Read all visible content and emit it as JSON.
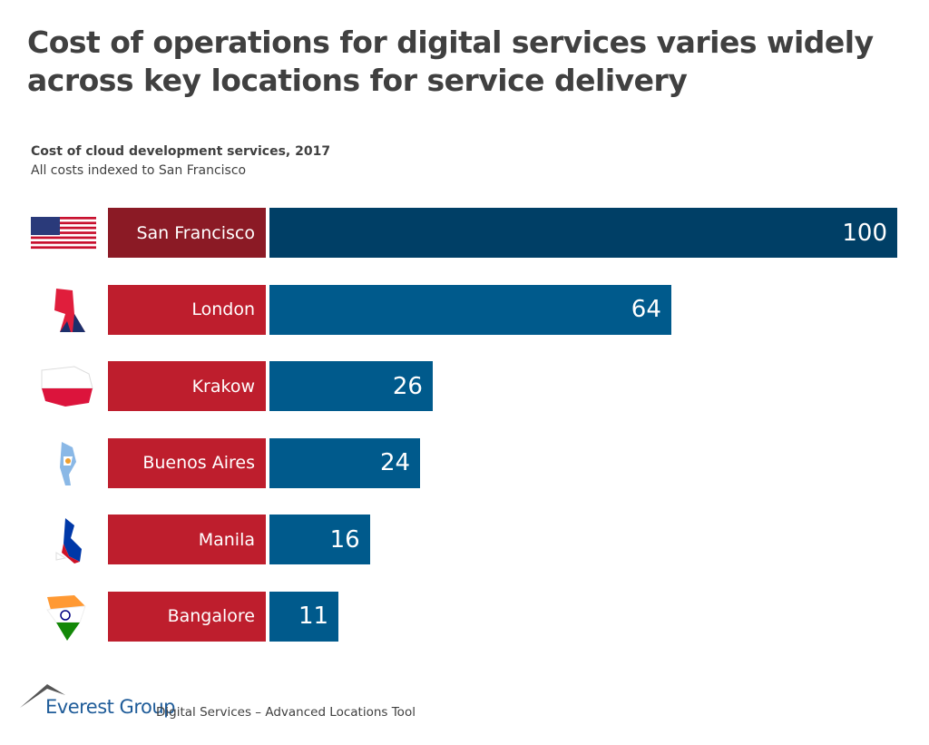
{
  "title": "Cost of operations for digital services varies widely across key locations for service delivery",
  "chart_data": {
    "type": "bar",
    "orientation": "horizontal",
    "title": "Cost of cloud development services, 2017",
    "subtitle": "All costs indexed to San Francisco",
    "categories": [
      "San Francisco",
      "London",
      "Krakow",
      "Buenos Aires",
      "Manila",
      "Bangalore"
    ],
    "values": [
      100,
      64,
      26,
      24,
      16,
      11
    ],
    "flags": [
      "usa-flag-map",
      "uk-flag-map",
      "poland-flag-map",
      "argentina-flag-map",
      "philippines-flag-map",
      "india-flag-map"
    ],
    "xlim": [
      0,
      100
    ],
    "colors": {
      "highlight_label": "#8b1a25",
      "label": "#be1e2d",
      "highlight_bar": "#003f66",
      "bar": "#005a8c"
    }
  },
  "footer": {
    "logo": "Everest Group",
    "tool": "Digital Services – Advanced Locations Tool"
  }
}
